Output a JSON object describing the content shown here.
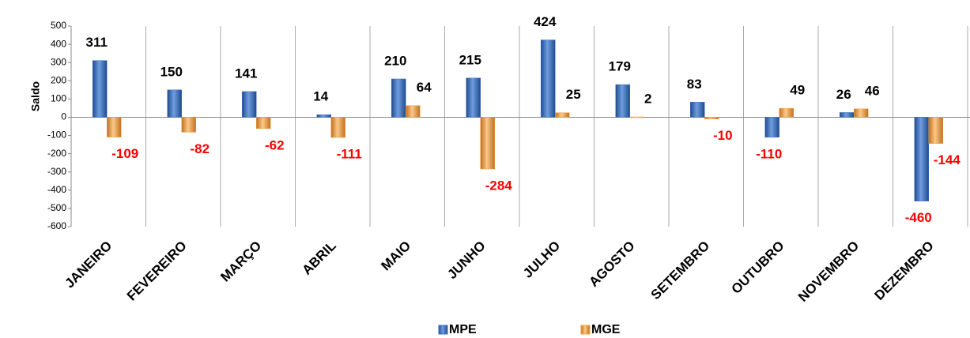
{
  "chart_data": {
    "type": "bar",
    "y_label": "Saldo",
    "categories": [
      "JANEIRO",
      "FEVEREIRO",
      "MARÇO",
      "ABRIL",
      "MAIO",
      "JUNHO",
      "JULHO",
      "AGOSTO",
      "SETEMBRO",
      "OUTUBRO",
      "NOVEMBRO",
      "DEZEMBRO"
    ],
    "series": [
      {
        "name": "MPE",
        "color": "#3f6fc0",
        "values": [
          311,
          150,
          141,
          14,
          210,
          215,
          424,
          179,
          83,
          -110,
          26,
          -460
        ]
      },
      {
        "name": "MGE",
        "color": "#f0a040",
        "values": [
          -109,
          -82,
          -62,
          -111,
          64,
          -284,
          25,
          2,
          -10,
          49,
          46,
          -144
        ]
      }
    ],
    "ylim": [
      -600,
      500
    ],
    "yticks": [
      -600,
      -500,
      -400,
      -300,
      -200,
      -100,
      0,
      100,
      200,
      300,
      400,
      500
    ],
    "legend": "bottom",
    "label_color_negative": "#ff0000"
  }
}
